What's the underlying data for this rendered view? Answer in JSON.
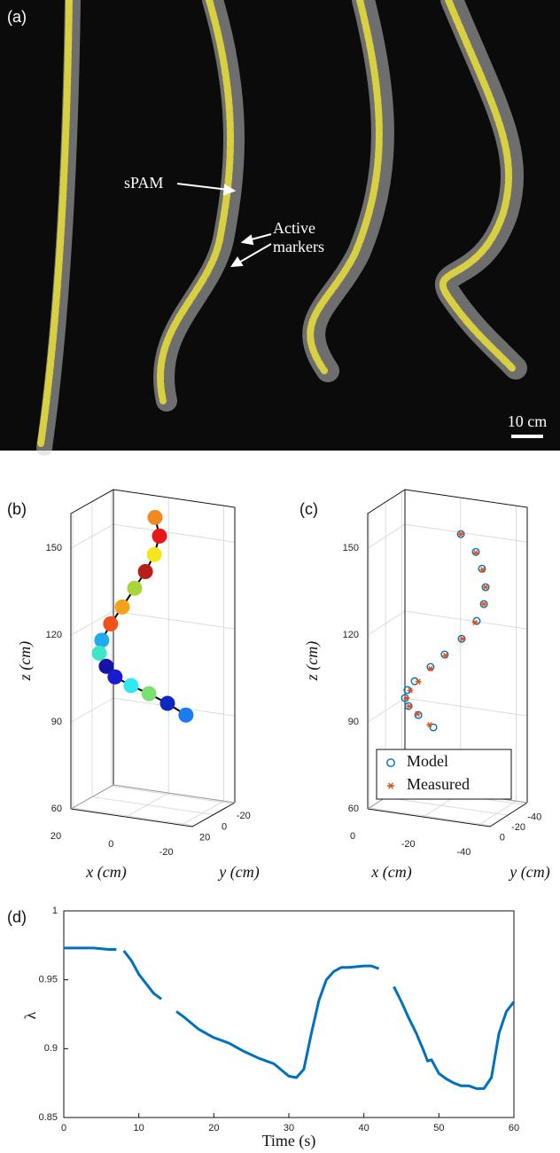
{
  "photo": {
    "label": "(a)",
    "annotations": {
      "spam": "sPAM",
      "markers": [
        "Active",
        "markers"
      ]
    },
    "scale_bar": "10 cm"
  },
  "chart_data": [
    {
      "type": "scatter3d",
      "label": "(b)",
      "xlabel": "x (cm)",
      "ylabel": "y (cm)",
      "zlabel": "z (cm)",
      "xlim": [
        -24,
        20
      ],
      "ylim": [
        -22,
        22
      ],
      "zlim": [
        60,
        162
      ],
      "xticks": [
        -20,
        0,
        20
      ],
      "yticks": [
        -20,
        0,
        20
      ],
      "zticks": [
        60,
        90,
        120,
        150
      ],
      "grid": true,
      "line_color": "#000000",
      "series": [
        {
          "x": [
            -2.8,
            -4.4,
            -2.5,
            0.7,
            4.6,
            9.1,
            13.3,
            16.5,
            17.4,
            14.9,
            11.7,
            5.9,
            -0.6,
            -7.3,
            -14.0
          ],
          "y": [
            0,
            0,
            0,
            0,
            0,
            0,
            0,
            0,
            0,
            0,
            0,
            0,
            0,
            0,
            0
          ],
          "z": [
            159.7,
            153.5,
            146.8,
            140.5,
            134.2,
            127.1,
            120.7,
            114.6,
            110.0,
            105.8,
            102.6,
            100.4,
            98.5,
            96.1,
            93.0
          ],
          "colors": [
            "#f08a1e",
            "#e8181a",
            "#f4e61c",
            "#b81f1b",
            "#a8d63a",
            "#f4a21a",
            "#f0501a",
            "#22aaf0",
            "#3ee6c8",
            "#1414a8",
            "#1a1ad0",
            "#30e8f0",
            "#7ae070",
            "#1026c0",
            "#1a7cf0"
          ]
        }
      ]
    },
    {
      "type": "scatter3d",
      "label": "(c)",
      "xlabel": "x (cm)",
      "ylabel": "y (cm)",
      "zlabel": "z (cm)",
      "xlim": [
        -44,
        0
      ],
      "ylim": [
        -44,
        2
      ],
      "zlim": [
        60,
        162
      ],
      "xticks": [
        -40,
        -20,
        0
      ],
      "yticks": [
        -40,
        -20,
        0
      ],
      "zticks": [
        60,
        90,
        120,
        150
      ],
      "grid": true,
      "series": [
        {
          "name": "Model",
          "marker": "circle",
          "color": "#0072bd",
          "x": [
            -27.1,
            -32.5,
            -34.7,
            -36.0,
            -35.4,
            -32.8,
            -27.4,
            -21.3,
            -16.2,
            -10.5,
            -7.9,
            -7.0,
            -8.3,
            -11.8,
            -17.2
          ],
          "y": [
            -20,
            -20,
            -20,
            -20,
            -20,
            -20,
            -20,
            -20,
            -20,
            -20,
            -20,
            -20,
            -20,
            -20,
            -20
          ],
          "z": [
            154.7,
            149.3,
            143.8,
            137.6,
            131.7,
            125.5,
            118.6,
            112.3,
            107.3,
            101.6,
            98.2,
            95.3,
            92.7,
            90.1,
            86.6
          ]
        },
        {
          "name": "Measured",
          "marker": "asterisk",
          "color": "#d95319",
          "x": [
            -27.1,
            -32.5,
            -35.0,
            -36.0,
            -35.4,
            -32.2,
            -27.7,
            -21.6,
            -16.2,
            -11.8,
            -8.9,
            -7.6,
            -8.6,
            -11.5,
            -15.9
          ],
          "y": [
            -20,
            -20,
            -20,
            -20,
            -20,
            -20,
            -20,
            -20,
            -20,
            -20,
            -20,
            -20,
            -20,
            -20,
            -20
          ],
          "z": [
            154.7,
            149.0,
            143.5,
            137.6,
            131.7,
            124.9,
            118.6,
            112.0,
            106.7,
            101.6,
            98.2,
            95.3,
            92.7,
            90.4,
            87.3
          ]
        }
      ]
    },
    {
      "type": "line",
      "label": "(d)",
      "xlabel": "Time (s)",
      "ylabel": "λ",
      "xlim": [
        0,
        60
      ],
      "ylim": [
        0.85,
        1
      ],
      "xticks": [
        0,
        10,
        20,
        30,
        40,
        50,
        60
      ],
      "yticks": [
        0.85,
        0.9,
        0.95,
        1
      ],
      "grid": false,
      "x": [
        0,
        2,
        4,
        6,
        7,
        7.5,
        8,
        9,
        10,
        11,
        12,
        13,
        14,
        15,
        16,
        18,
        20,
        22,
        24,
        26,
        28,
        30,
        31,
        32,
        33,
        34,
        35,
        36,
        37,
        38,
        40,
        41,
        42,
        43,
        44,
        45,
        46,
        47,
        48,
        48.5,
        49,
        50,
        51,
        52,
        53,
        54,
        55,
        56,
        57,
        58,
        59,
        60
      ],
      "series": [
        {
          "color": "#0072bd",
          "values": [
            0.973,
            0.973,
            0.973,
            0.972,
            0.972,
            null,
            0.971,
            0.964,
            0.954,
            0.947,
            0.94,
            0.936,
            null,
            0.927,
            0.923,
            0.914,
            0.908,
            0.904,
            0.898,
            0.893,
            0.889,
            0.88,
            0.879,
            0.885,
            0.911,
            0.935,
            0.95,
            0.956,
            0.959,
            0.959,
            0.96,
            0.96,
            0.958,
            null,
            0.945,
            0.934,
            0.922,
            0.911,
            0.898,
            0.891,
            0.892,
            0.882,
            0.878,
            0.875,
            0.873,
            0.873,
            0.871,
            0.871,
            0.879,
            0.911,
            0.927,
            0.934
          ]
        }
      ]
    }
  ]
}
